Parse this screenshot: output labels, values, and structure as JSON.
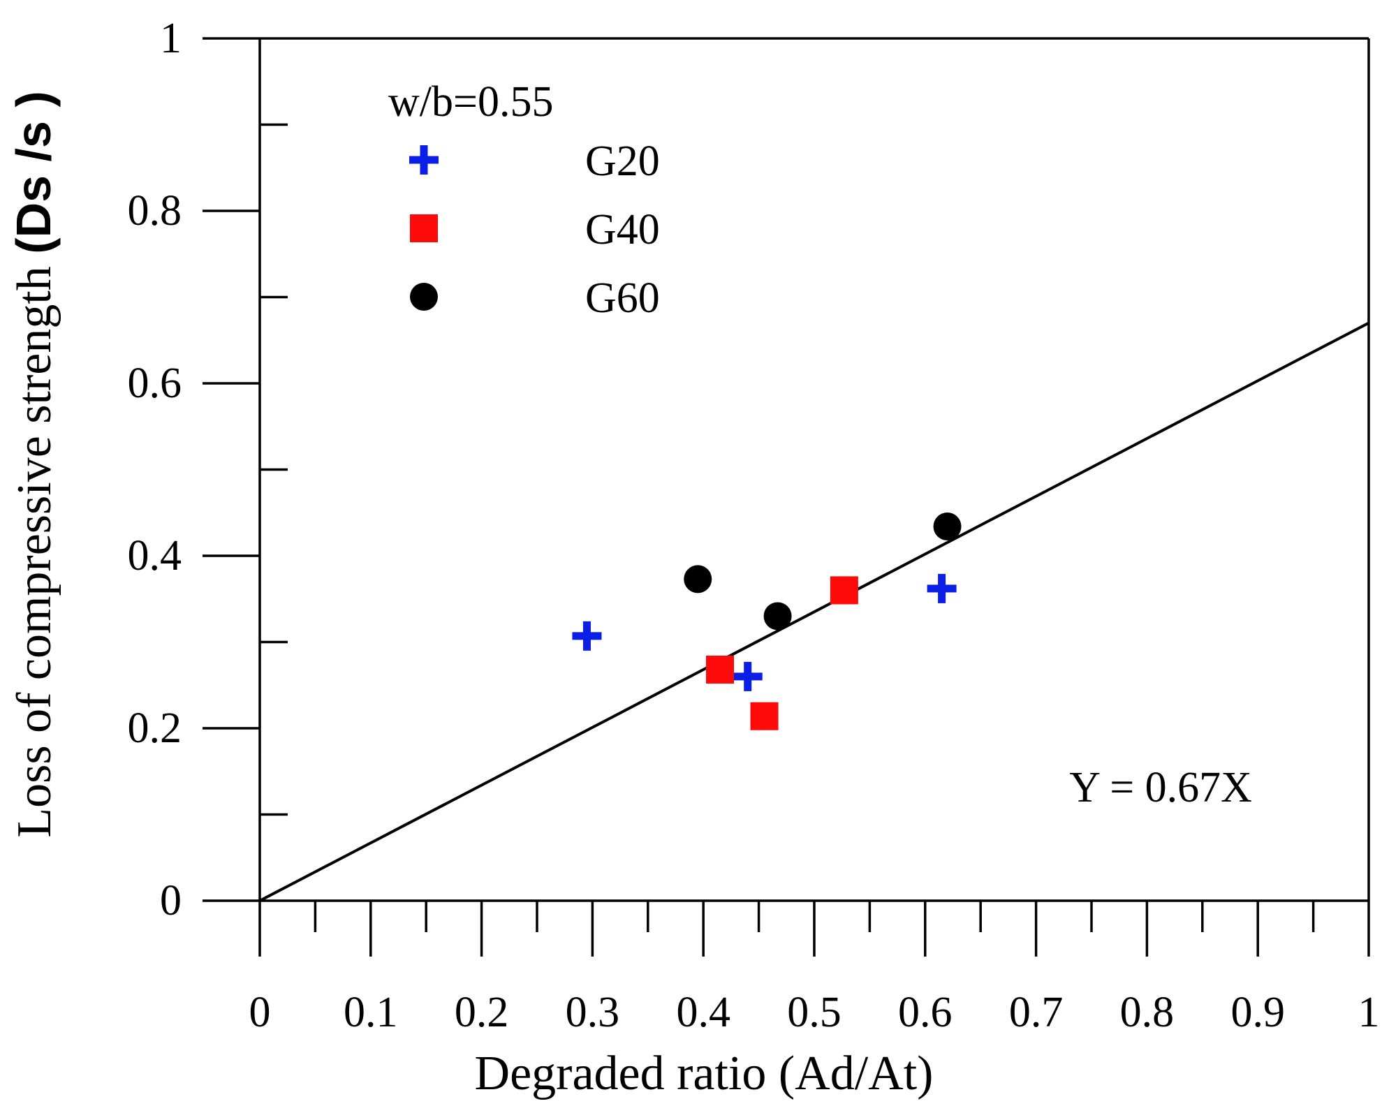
{
  "chart_data": {
    "type": "scatter",
    "xlabel": "Degraded ratio (Ad/At)",
    "ylabel": {
      "plain": "Loss of  compressive strength ",
      "bold": "(Ds /s )"
    },
    "xlim": [
      0,
      1
    ],
    "ylim": [
      0,
      1
    ],
    "x_ticks": [
      "0",
      "0.1",
      "0.2",
      "0.3",
      "0.4",
      "0.5",
      "0.6",
      "0.7",
      "0.8",
      "0.9",
      "1"
    ],
    "y_ticks": [
      "0",
      "0.2",
      "0.4",
      "0.6",
      "0.8",
      "1"
    ],
    "x_tick_values": [
      0,
      0.1,
      0.2,
      0.3,
      0.4,
      0.5,
      0.6,
      0.7,
      0.8,
      0.9,
      1
    ],
    "y_tick_values": [
      0,
      0.2,
      0.4,
      0.6,
      0.8,
      1
    ],
    "x_minor_tick_values": [
      0.05,
      0.15,
      0.25,
      0.35,
      0.45,
      0.55,
      0.65,
      0.75,
      0.85,
      0.95
    ],
    "y_minor_tick_values": [
      0.1,
      0.3,
      0.5,
      0.7,
      0.9
    ],
    "grid": false,
    "legend_title": "w/b=0.55",
    "legend_position": "top-left",
    "series": [
      {
        "name": "G20",
        "marker": "plus",
        "color": "#0a1ee6",
        "points": [
          [
            0.295,
            0.307
          ],
          [
            0.44,
            0.26
          ],
          [
            0.615,
            0.362
          ]
        ]
      },
      {
        "name": "G40",
        "marker": "square",
        "color": "#ff0a0a",
        "points": [
          [
            0.415,
            0.268
          ],
          [
            0.455,
            0.214
          ],
          [
            0.527,
            0.36
          ]
        ]
      },
      {
        "name": "G60",
        "marker": "circle",
        "color": "#000000",
        "points": [
          [
            0.395,
            0.373
          ],
          [
            0.467,
            0.33
          ],
          [
            0.62,
            0.434
          ]
        ]
      }
    ],
    "fit_line": {
      "slope": 0.67,
      "x_range": [
        0,
        1
      ],
      "label": "Y = 0.67X",
      "label_position": {
        "x": 0.73,
        "y": 0.115
      }
    }
  }
}
